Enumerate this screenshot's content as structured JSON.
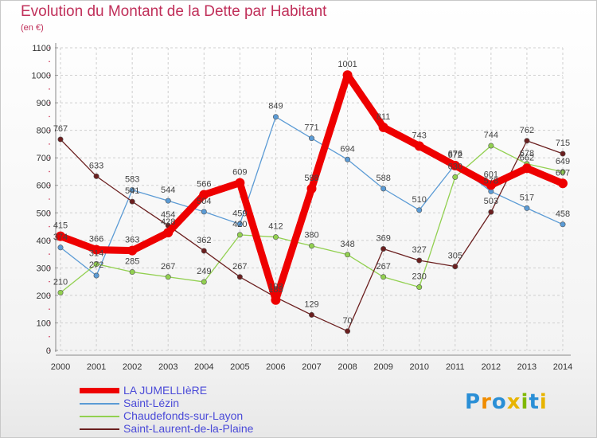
{
  "header": {
    "title": "Evolution du Montant de la Dette par Habitant",
    "subtitle": "(en €)"
  },
  "logo": {
    "text": "Proxiti"
  },
  "chart_data": {
    "type": "line",
    "title": "Evolution du Montant de la Dette par Habitant",
    "subtitle": "(en €)",
    "xlabel": "",
    "ylabel": "",
    "x": [
      2000,
      2001,
      2002,
      2003,
      2004,
      2005,
      2006,
      2007,
      2008,
      2009,
      2010,
      2011,
      2012,
      2013,
      2014
    ],
    "ylim": [
      0,
      1100
    ],
    "yticks": [
      0,
      100,
      200,
      300,
      400,
      500,
      600,
      700,
      800,
      900,
      1000,
      1100
    ],
    "grid": true,
    "legend_position": "bottom",
    "series": [
      {
        "name": "LA JUMELLIèRE",
        "color": "#ee0000",
        "values": [
          415,
          366,
          363,
          428,
          566,
          609,
          183,
          588,
          1001,
          811,
          743,
          672,
          601,
          662,
          607
        ]
      },
      {
        "name": "Saint-Lézin",
        "color": "#5b9bd5",
        "values": [
          374,
          272,
          583,
          544,
          504,
          459,
          849,
          771,
          694,
          588,
          510,
          676,
          578,
          517,
          458
        ]
      },
      {
        "name": "Chaudefonds-sur-Layon",
        "color": "#92d050",
        "values": [
          210,
          314,
          285,
          267,
          249,
          420,
          412,
          380,
          348,
          267,
          230,
          630,
          744,
          678,
          649
        ]
      },
      {
        "name": "Saint-Laurent-de-la-Plaine",
        "color": "#6b1f1f",
        "values": [
          767,
          633,
          541,
          454,
          362,
          267,
          193,
          129,
          70,
          369,
          327,
          305,
          503,
          762,
          715
        ]
      }
    ]
  }
}
